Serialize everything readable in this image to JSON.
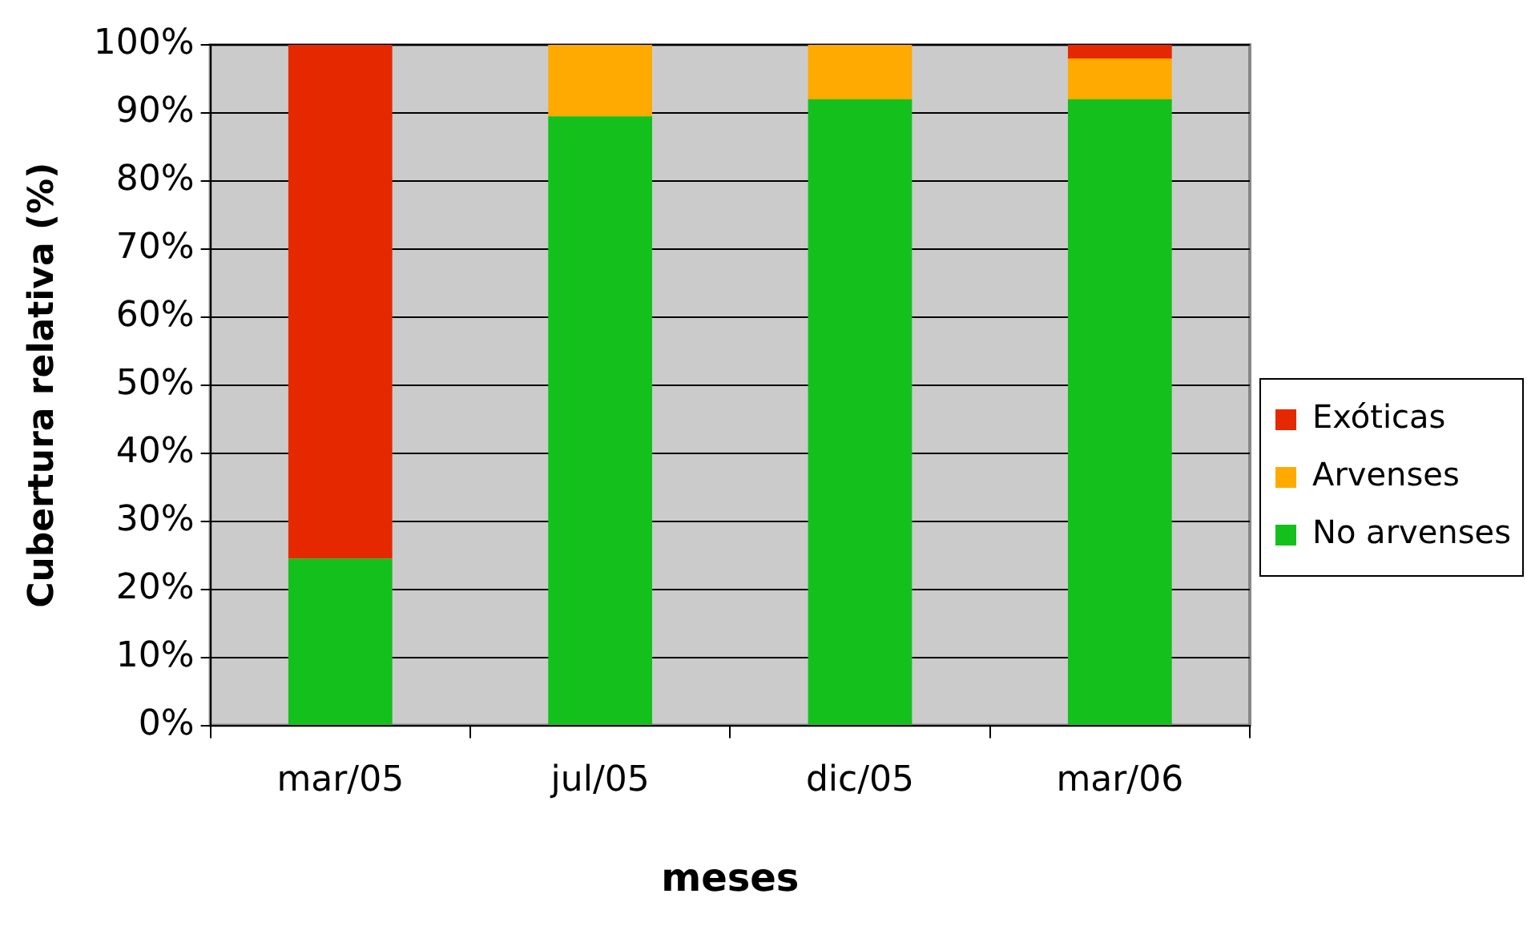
{
  "chart_data": {
    "type": "bar",
    "xlabel": "meses",
    "ylabel": "Cubertura relativa (%)",
    "categories": [
      "mar/05",
      "jul/05",
      "dic/05",
      "mar/06"
    ],
    "series": [
      {
        "name": "No arvenses",
        "color": "#14c01c",
        "values": [
          24.5,
          89.5,
          92,
          92
        ]
      },
      {
        "name": "Arvenses",
        "color": "#ffaa00",
        "values": [
          0,
          10.5,
          8,
          6
        ]
      },
      {
        "name": "Exóticas",
        "color": "#e62800",
        "values": [
          75.5,
          0,
          0,
          2
        ]
      }
    ],
    "stacked": true,
    "ylim": [
      0,
      100
    ],
    "yticks": [
      {
        "value": 0,
        "label": "0%"
      },
      {
        "value": 10,
        "label": "10%"
      },
      {
        "value": 20,
        "label": "20%"
      },
      {
        "value": 30,
        "label": "30%"
      },
      {
        "value": 40,
        "label": "40%"
      },
      {
        "value": 50,
        "label": "50%"
      },
      {
        "value": 60,
        "label": "60%"
      },
      {
        "value": 70,
        "label": "70%"
      },
      {
        "value": 80,
        "label": "80%"
      },
      {
        "value": 90,
        "label": "90%"
      },
      {
        "value": 100,
        "label": "100%"
      }
    ],
    "grid": "y",
    "legend": "right"
  }
}
